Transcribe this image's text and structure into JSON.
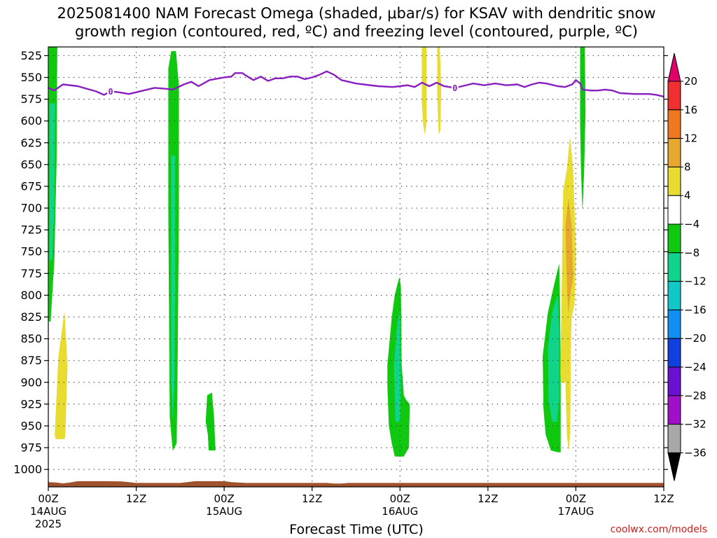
{
  "chart_data": {
    "type": "heatmap",
    "title_lines": [
      "2025081400 NAM Forecast Omega (shaded, μbar/s) for KSAV with dendritic snow",
      "growth region (contoured, red, ºC) and freezing level (contoured, purple, ºC)"
    ],
    "xlabel": "Forecast Time (UTC)",
    "credit": "coolwx.com/models",
    "x_range_hours": [
      0,
      84
    ],
    "y_range_hpa": [
      515,
      1020
    ],
    "y_ticks": [
      525,
      550,
      575,
      600,
      625,
      650,
      675,
      700,
      725,
      750,
      775,
      800,
      825,
      850,
      875,
      900,
      925,
      950,
      975,
      1000
    ],
    "x_ticks": [
      {
        "hour": 0,
        "label": "00Z",
        "sub": "14AUG",
        "sub2": "2025"
      },
      {
        "hour": 12,
        "label": "12Z",
        "sub": "",
        "sub2": ""
      },
      {
        "hour": 24,
        "label": "00Z",
        "sub": "15AUG",
        "sub2": ""
      },
      {
        "hour": 36,
        "label": "12Z",
        "sub": "",
        "sub2": ""
      },
      {
        "hour": 48,
        "label": "00Z",
        "sub": "16AUG",
        "sub2": ""
      },
      {
        "hour": 60,
        "label": "12Z",
        "sub": "",
        "sub2": ""
      },
      {
        "hour": 72,
        "label": "00Z",
        "sub": "17AUG",
        "sub2": ""
      },
      {
        "hour": 84,
        "label": "12Z",
        "sub": "",
        "sub2": ""
      }
    ],
    "grid": true,
    "colorbar": {
      "labels": [
        "20",
        "16",
        "12",
        "8",
        "4",
        "−4",
        "−8",
        "−12",
        "−16",
        "−20",
        "−24",
        "−28",
        "−32",
        "−36"
      ],
      "colors": [
        "#e0006a",
        "#f03030",
        "#f07820",
        "#e8a830",
        "#e8dc30",
        "#ffffff",
        "#10c810",
        "#10d48c",
        "#10c8c8",
        "#1090f0",
        "#1040e0",
        "#6a10d0",
        "#a010c8",
        "#a8a8a8",
        "#000000"
      ]
    },
    "omega_regions": [
      {
        "value": -6,
        "points": [
          [
            0.1,
            515
          ],
          [
            1.2,
            515
          ],
          [
            1.1,
            650
          ],
          [
            0.8,
            760
          ],
          [
            0.3,
            830
          ],
          [
            0.1,
            830
          ]
        ]
      },
      {
        "value": -10,
        "points": [
          [
            0.2,
            580
          ],
          [
            0.9,
            580
          ],
          [
            0.8,
            700
          ],
          [
            0.5,
            760
          ],
          [
            0.2,
            760
          ]
        ]
      },
      {
        "value": 6,
        "points": [
          [
            0.9,
            960
          ],
          [
            1.4,
            870
          ],
          [
            2.2,
            820
          ],
          [
            2.6,
            880
          ],
          [
            2.3,
            960
          ],
          [
            2.2,
            965
          ],
          [
            1.0,
            965
          ]
        ]
      },
      {
        "value": -6,
        "points": [
          [
            16.4,
            540
          ],
          [
            16.8,
            520
          ],
          [
            17.4,
            520
          ],
          [
            17.8,
            560
          ],
          [
            17.8,
            700
          ],
          [
            17.6,
            900
          ],
          [
            17.5,
            970
          ],
          [
            17.0,
            978
          ],
          [
            16.6,
            940
          ],
          [
            16.4,
            700
          ]
        ]
      },
      {
        "value": -10,
        "points": [
          [
            16.8,
            640
          ],
          [
            17.3,
            640
          ],
          [
            17.3,
            800
          ],
          [
            17.2,
            900
          ],
          [
            17.0,
            940
          ],
          [
            16.8,
            900
          ]
        ]
      },
      {
        "value": -6,
        "points": [
          [
            21.5,
            945
          ],
          [
            21.7,
            915
          ],
          [
            22.3,
            912
          ],
          [
            22.6,
            940
          ],
          [
            22.7,
            960
          ],
          [
            22.8,
            978
          ],
          [
            21.9,
            978
          ],
          [
            21.8,
            960
          ]
        ]
      },
      {
        "value": -6,
        "points": [
          [
            46.3,
            880
          ],
          [
            46.9,
            825
          ],
          [
            47.3,
            800
          ],
          [
            47.9,
            780
          ],
          [
            48.1,
            790
          ],
          [
            48.2,
            880
          ],
          [
            48.5,
            915
          ],
          [
            48.8,
            920
          ],
          [
            49.3,
            925
          ],
          [
            49.2,
            975
          ],
          [
            48.5,
            985
          ],
          [
            47.3,
            985
          ],
          [
            46.9,
            970
          ],
          [
            46.5,
            950
          ],
          [
            46.3,
            905
          ]
        ]
      },
      {
        "value": -10,
        "points": [
          [
            47.2,
            880
          ],
          [
            47.7,
            830
          ],
          [
            48.0,
            820
          ],
          [
            48.1,
            900
          ],
          [
            48.0,
            945
          ],
          [
            47.4,
            945
          ]
        ]
      },
      {
        "value": 6,
        "points": [
          [
            51.0,
            515
          ],
          [
            51.6,
            515
          ],
          [
            51.6,
            600
          ],
          [
            51.4,
            615
          ],
          [
            51.2,
            605
          ],
          [
            51.0,
            580
          ]
        ]
      },
      {
        "value": 6,
        "points": [
          [
            53.1,
            515
          ],
          [
            53.4,
            515
          ],
          [
            53.6,
            560
          ],
          [
            53.5,
            610
          ],
          [
            53.3,
            615
          ],
          [
            53.1,
            570
          ]
        ]
      },
      {
        "value": -6,
        "points": [
          [
            67.5,
            870
          ],
          [
            68.2,
            820
          ],
          [
            69.0,
            790
          ],
          [
            69.7,
            765
          ],
          [
            69.8,
            800
          ],
          [
            69.9,
            880
          ],
          [
            69.9,
            980
          ],
          [
            69.5,
            980
          ],
          [
            68.6,
            978
          ],
          [
            67.9,
            960
          ],
          [
            67.6,
            930
          ]
        ]
      },
      {
        "value": -10,
        "points": [
          [
            68.2,
            860
          ],
          [
            68.8,
            820
          ],
          [
            69.5,
            800
          ],
          [
            69.7,
            840
          ],
          [
            69.7,
            920
          ],
          [
            69.4,
            945
          ],
          [
            68.8,
            945
          ],
          [
            68.3,
            920
          ]
        ]
      },
      {
        "value": 6,
        "points": [
          [
            69.9,
            890
          ],
          [
            70.3,
            680
          ],
          [
            70.8,
            655
          ],
          [
            71.2,
            620
          ],
          [
            71.6,
            655
          ],
          [
            71.8,
            700
          ],
          [
            72.0,
            750
          ],
          [
            71.8,
            810
          ],
          [
            71.4,
            825
          ],
          [
            71.3,
            860
          ],
          [
            71.2,
            960
          ],
          [
            71.0,
            978
          ],
          [
            70.8,
            960
          ],
          [
            70.6,
            900
          ],
          [
            70.0,
            900
          ]
        ]
      },
      {
        "value": 10,
        "points": [
          [
            70.6,
            720
          ],
          [
            71.0,
            690
          ],
          [
            71.4,
            720
          ],
          [
            71.6,
            780
          ],
          [
            71.2,
            800
          ],
          [
            71.0,
            820
          ],
          [
            70.8,
            790
          ]
        ]
      },
      {
        "value": -6,
        "points": [
          [
            72.6,
            515
          ],
          [
            73.2,
            515
          ],
          [
            73.3,
            590
          ],
          [
            73.1,
            660
          ],
          [
            72.9,
            700
          ],
          [
            72.7,
            650
          ],
          [
            72.6,
            600
          ]
        ]
      }
    ],
    "freezing_level": {
      "label": "0",
      "label_hours": [
        8.5,
        55.5
      ],
      "points": [
        [
          0,
          562
        ],
        [
          0.8,
          565
        ],
        [
          2.0,
          558
        ],
        [
          4.0,
          560
        ],
        [
          6.5,
          566
        ],
        [
          7.6,
          570
        ],
        [
          8.5,
          566
        ],
        [
          9.6,
          567
        ],
        [
          11.0,
          569
        ],
        [
          13.0,
          565
        ],
        [
          14.5,
          562
        ],
        [
          16.0,
          563
        ],
        [
          17.0,
          564
        ],
        [
          18.5,
          558
        ],
        [
          19.5,
          555
        ],
        [
          20.5,
          560
        ],
        [
          22.0,
          553
        ],
        [
          24.0,
          550
        ],
        [
          25.0,
          549
        ],
        [
          25.5,
          545
        ],
        [
          26.5,
          545
        ],
        [
          27.0,
          548
        ],
        [
          28.0,
          553
        ],
        [
          29.0,
          549
        ],
        [
          30.0,
          554
        ],
        [
          31.0,
          551
        ],
        [
          32.0,
          551
        ],
        [
          33.0,
          549
        ],
        [
          34.0,
          549
        ],
        [
          35.0,
          552
        ],
        [
          36.0,
          550
        ],
        [
          37.0,
          547
        ],
        [
          38.0,
          543
        ],
        [
          39.0,
          547
        ],
        [
          40.0,
          553
        ],
        [
          42.0,
          557
        ],
        [
          45.0,
          560
        ],
        [
          47.0,
          561
        ],
        [
          48.0,
          560
        ],
        [
          49.0,
          559
        ],
        [
          50.0,
          561
        ],
        [
          51.0,
          556
        ],
        [
          52.0,
          560
        ],
        [
          53.0,
          556
        ],
        [
          54.0,
          560
        ],
        [
          55.5,
          562
        ],
        [
          56.5,
          560
        ],
        [
          58.0,
          557
        ],
        [
          59.5,
          559
        ],
        [
          61.0,
          557
        ],
        [
          62.5,
          559
        ],
        [
          64.0,
          558
        ],
        [
          65.0,
          561
        ],
        [
          66.0,
          558
        ],
        [
          67.0,
          556
        ],
        [
          68.0,
          557
        ],
        [
          69.5,
          560
        ],
        [
          70.5,
          561
        ],
        [
          71.5,
          558
        ],
        [
          72.0,
          553
        ],
        [
          72.6,
          557
        ],
        [
          72.9,
          564
        ],
        [
          74.0,
          565
        ],
        [
          75.0,
          565
        ],
        [
          76.0,
          564
        ],
        [
          77.0,
          565
        ],
        [
          78.0,
          568
        ],
        [
          80.0,
          569
        ],
        [
          82.0,
          569
        ],
        [
          83.0,
          570
        ],
        [
          84.0,
          572
        ]
      ]
    },
    "terrain": {
      "color": "#a0522d",
      "points": [
        [
          0,
          1014.5
        ],
        [
          1,
          1015.0
        ],
        [
          2,
          1016.0
        ],
        [
          3,
          1015.0
        ],
        [
          4,
          1013.5
        ],
        [
          6,
          1013.5
        ],
        [
          8,
          1013.5
        ],
        [
          10,
          1013.8
        ],
        [
          11,
          1014.5
        ],
        [
          12,
          1015.5
        ],
        [
          15,
          1015.5
        ],
        [
          18,
          1015.5
        ],
        [
          19,
          1014.5
        ],
        [
          20,
          1013.5
        ],
        [
          24,
          1013.5
        ],
        [
          25,
          1014.5
        ],
        [
          27,
          1015.5
        ],
        [
          33,
          1015.5
        ],
        [
          38,
          1015.5
        ],
        [
          39,
          1016.2
        ],
        [
          40,
          1016.2
        ],
        [
          41,
          1015.5
        ],
        [
          84,
          1015.5
        ]
      ],
      "bottom": 1020
    }
  }
}
